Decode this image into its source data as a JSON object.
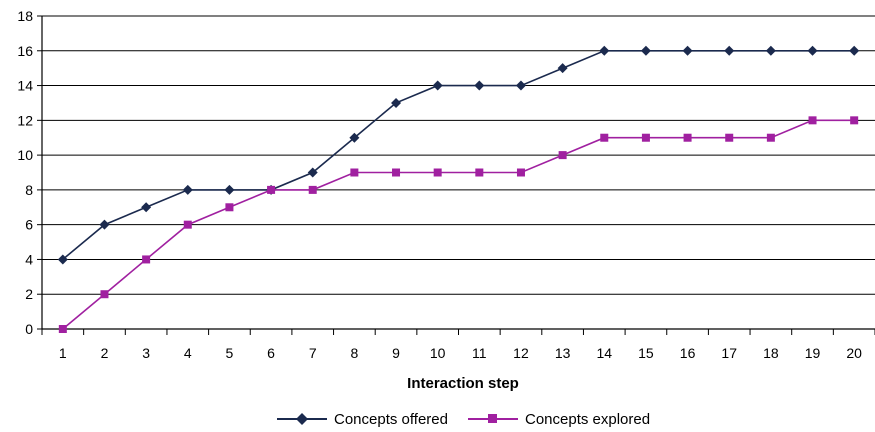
{
  "chart_data": {
    "type": "line",
    "title": "",
    "xlabel": "Interaction step",
    "ylabel": "",
    "x": [
      1,
      2,
      3,
      4,
      5,
      6,
      7,
      8,
      9,
      10,
      11,
      12,
      13,
      14,
      15,
      16,
      17,
      18,
      19,
      20
    ],
    "x_tick_labels": [
      "1",
      "2",
      "3",
      "4",
      "5",
      "6",
      "7",
      "8",
      "9",
      "10",
      "11",
      "12",
      "13",
      "14",
      "15",
      "16",
      "17",
      "18",
      "19",
      "20"
    ],
    "ylim": [
      0,
      18
    ],
    "y_ticks": [
      0,
      2,
      4,
      6,
      8,
      10,
      12,
      14,
      16,
      18
    ],
    "y_tick_labels": [
      "0",
      "2",
      "4",
      "6",
      "8",
      "10",
      "12",
      "14",
      "16",
      "18"
    ],
    "grid": "horizontal",
    "legend_position": "bottom",
    "series": [
      {
        "name": "Concepts offered",
        "color": "#1b2a4e",
        "marker": "diamond",
        "values": [
          4,
          6,
          7,
          8,
          8,
          8,
          9,
          11,
          13,
          14,
          14,
          14,
          15,
          16,
          16,
          16,
          16,
          16,
          16,
          16
        ]
      },
      {
        "name": "Concepts explored",
        "color": "#a020a0",
        "marker": "square",
        "values": [
          0,
          2,
          4,
          6,
          7,
          8,
          8,
          9,
          9,
          9,
          9,
          9,
          10,
          11,
          11,
          11,
          11,
          11,
          12,
          12
        ]
      }
    ]
  }
}
